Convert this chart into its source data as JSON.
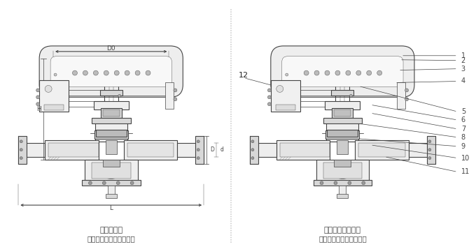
{
  "bg_color": "#ffffff",
  "line_color": "#444444",
  "dark_color": "#222222",
  "gray_fill": "#d8d8d8",
  "light_fill": "#eeeeee",
  "title1": "结构尺寸图",
  "title2": "衬氟气动薄膜调节隔膜阀",
  "title3": "结构零部件示意图",
  "title4": "衬氟气动薄膜调节隔膜阀",
  "label12": "12",
  "part_labels": [
    "1",
    "2",
    "3",
    "4",
    "5",
    "6",
    "7",
    "8",
    "9",
    "10",
    "11"
  ],
  "dim_D0": "D0",
  "dim_H": "H",
  "dim_D": "D",
  "dim_L": "L"
}
